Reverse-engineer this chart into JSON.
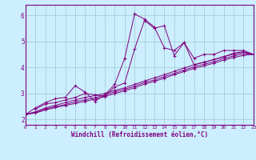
{
  "xlabel": "Windchill (Refroidissement éolien,°C)",
  "bg_color": "#cceeff",
  "line_color": "#800080",
  "grid_color": "#99cccc",
  "xmin": 0,
  "xmax": 23,
  "ymin": 1.8,
  "ymax": 6.4,
  "yticks": [
    2,
    3,
    4,
    5,
    6
  ],
  "xticks": [
    0,
    1,
    2,
    3,
    4,
    5,
    6,
    7,
    8,
    9,
    10,
    11,
    12,
    13,
    14,
    15,
    16,
    17,
    18,
    19,
    20,
    21,
    22,
    23
  ],
  "lines": [
    {
      "x": [
        0,
        1,
        2,
        3,
        4,
        5,
        6,
        7,
        8,
        9,
        10,
        11,
        12,
        13,
        14,
        15,
        16,
        17,
        18,
        19,
        20,
        21,
        22,
        23
      ],
      "y": [
        2.2,
        2.45,
        2.65,
        2.8,
        2.85,
        3.3,
        3.05,
        2.7,
        2.95,
        3.35,
        4.35,
        6.05,
        5.85,
        5.55,
        4.75,
        4.65,
        4.95,
        4.35,
        4.5,
        4.5,
        4.65,
        4.65,
        4.65,
        4.5
      ]
    },
    {
      "x": [
        1,
        2,
        3,
        4,
        5,
        6,
        7,
        8,
        9,
        10,
        11,
        12,
        13,
        14,
        15,
        16,
        17,
        18,
        19,
        20,
        21,
        22,
        23
      ],
      "y": [
        2.4,
        2.6,
        2.65,
        2.75,
        2.85,
        3.0,
        2.95,
        2.9,
        3.25,
        3.4,
        4.7,
        5.8,
        5.5,
        5.6,
        4.45,
        4.95,
        4.1,
        4.2,
        4.3,
        4.4,
        4.55,
        4.6,
        4.5
      ]
    },
    {
      "x": [
        0,
        1,
        2,
        3,
        4,
        5,
        6,
        7,
        8,
        9,
        10,
        11,
        12,
        13,
        14,
        15,
        16,
        17,
        18,
        19,
        20,
        21,
        22,
        23
      ],
      "y": [
        2.2,
        2.3,
        2.45,
        2.55,
        2.65,
        2.75,
        2.85,
        2.92,
        3.0,
        3.12,
        3.22,
        3.35,
        3.48,
        3.6,
        3.72,
        3.85,
        3.98,
        4.1,
        4.2,
        4.3,
        4.42,
        4.5,
        4.58,
        4.5
      ]
    },
    {
      "x": [
        0,
        1,
        2,
        3,
        4,
        5,
        6,
        7,
        8,
        9,
        10,
        11,
        12,
        13,
        14,
        15,
        16,
        17,
        18,
        19,
        20,
        21,
        22,
        23
      ],
      "y": [
        2.2,
        2.28,
        2.4,
        2.5,
        2.58,
        2.68,
        2.76,
        2.84,
        2.94,
        3.06,
        3.16,
        3.28,
        3.42,
        3.52,
        3.65,
        3.77,
        3.9,
        4.02,
        4.12,
        4.22,
        4.34,
        4.44,
        4.52,
        4.5
      ]
    },
    {
      "x": [
        0,
        1,
        2,
        3,
        4,
        5,
        6,
        7,
        8,
        9,
        10,
        11,
        12,
        13,
        14,
        15,
        16,
        17,
        18,
        19,
        20,
        21,
        22,
        23
      ],
      "y": [
        2.2,
        2.25,
        2.37,
        2.46,
        2.54,
        2.62,
        2.7,
        2.78,
        2.88,
        3.0,
        3.1,
        3.22,
        3.36,
        3.46,
        3.59,
        3.72,
        3.84,
        3.96,
        4.06,
        4.16,
        4.28,
        4.38,
        4.46,
        4.5
      ]
    }
  ]
}
